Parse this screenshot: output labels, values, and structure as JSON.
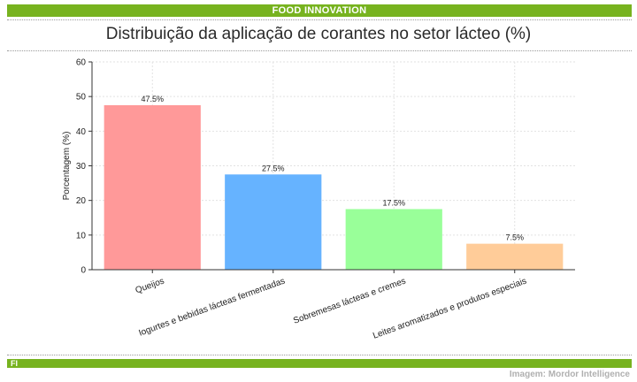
{
  "header": {
    "brand": "FOOD INNOVATION"
  },
  "footer": {
    "code": "FI",
    "credit": "Imagem: Mordor Intelligence"
  },
  "colors": {
    "accent": "#77b31f"
  },
  "chart_data": {
    "type": "bar",
    "title": "Distribuição da aplicação de corantes no setor lácteo (%)",
    "xlabel": "",
    "ylabel": "Porcentagem (%)",
    "ylim": [
      0,
      60
    ],
    "yticks": [
      0,
      10,
      20,
      30,
      40,
      50,
      60
    ],
    "grid": true,
    "categories": [
      "Queijos",
      "Iogurtes e bebidas lácteas fermentadas",
      "Sobremesas lácteas e cremes",
      "Leites aromatizados e produtos especiais"
    ],
    "values": [
      47.5,
      27.5,
      17.5,
      7.5
    ],
    "data_labels": [
      "47.5%",
      "27.5%",
      "17.5%",
      "7.5%"
    ],
    "bar_colors": [
      "#ff9999",
      "#66b3ff",
      "#99ff99",
      "#ffcc99"
    ]
  }
}
